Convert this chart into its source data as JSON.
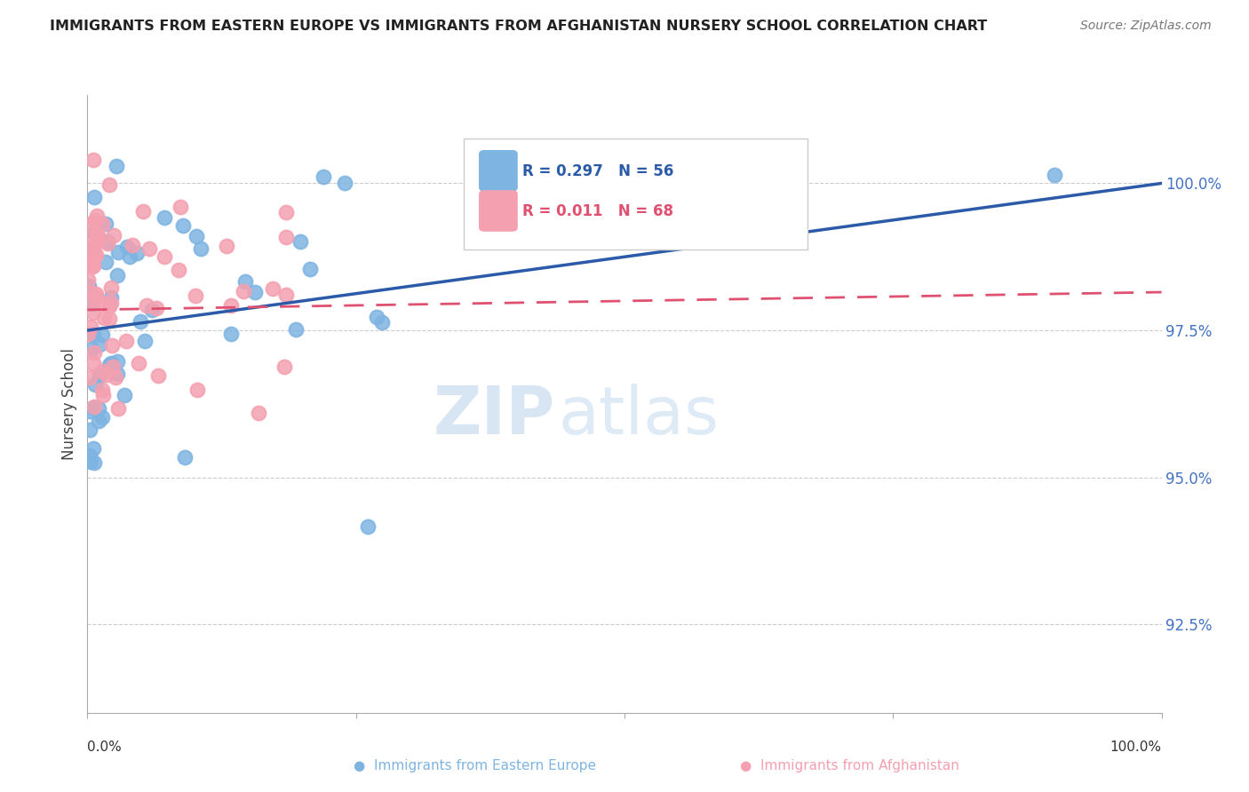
{
  "title": "IMMIGRANTS FROM EASTERN EUROPE VS IMMIGRANTS FROM AFGHANISTAN NURSERY SCHOOL CORRELATION CHART",
  "source": "Source: ZipAtlas.com",
  "ylabel": "Nursery School",
  "yticks": [
    92.5,
    95.0,
    97.5,
    100.0
  ],
  "ytick_labels": [
    "92.5%",
    "95.0%",
    "97.5%",
    "100.0%"
  ],
  "xlim": [
    0,
    100
  ],
  "ylim": [
    91.0,
    101.5
  ],
  "blue_color": "#7EB4E2",
  "pink_color": "#F4A0B0",
  "blue_line_color": "#2B5BA8",
  "pink_line_color": "#E05070",
  "blue_r": "0.297",
  "blue_n": "56",
  "pink_r": "0.011",
  "pink_n": "68",
  "blue_slope": 0.025,
  "blue_intercept": 97.5,
  "pink_slope": 0.003,
  "pink_intercept": 97.85
}
